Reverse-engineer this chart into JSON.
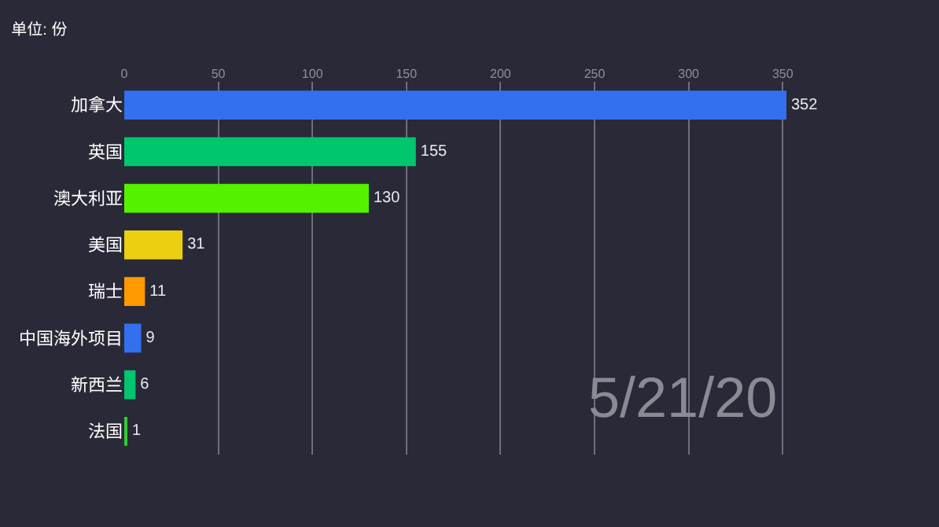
{
  "chart_data": {
    "type": "bar",
    "orientation": "horizontal",
    "title": "单位: 份",
    "categories": [
      "加拿大",
      "英国",
      "澳大利亚",
      "美国",
      "瑞士",
      "中国海外项目",
      "新西兰",
      "法国"
    ],
    "values": [
      352,
      155,
      130,
      31,
      11,
      9,
      6,
      1
    ],
    "colors": [
      "#3370f0",
      "#00c66e",
      "#55f200",
      "#ebcf10",
      "#ff9a00",
      "#3370f0",
      "#00c66e",
      "#33cc33"
    ],
    "xlim": [
      0,
      352
    ],
    "xticks": [
      0,
      50,
      100,
      150,
      200,
      250,
      300,
      350
    ],
    "grid": "x",
    "data_labels": true,
    "annotations": [
      "5/21/20"
    ]
  }
}
